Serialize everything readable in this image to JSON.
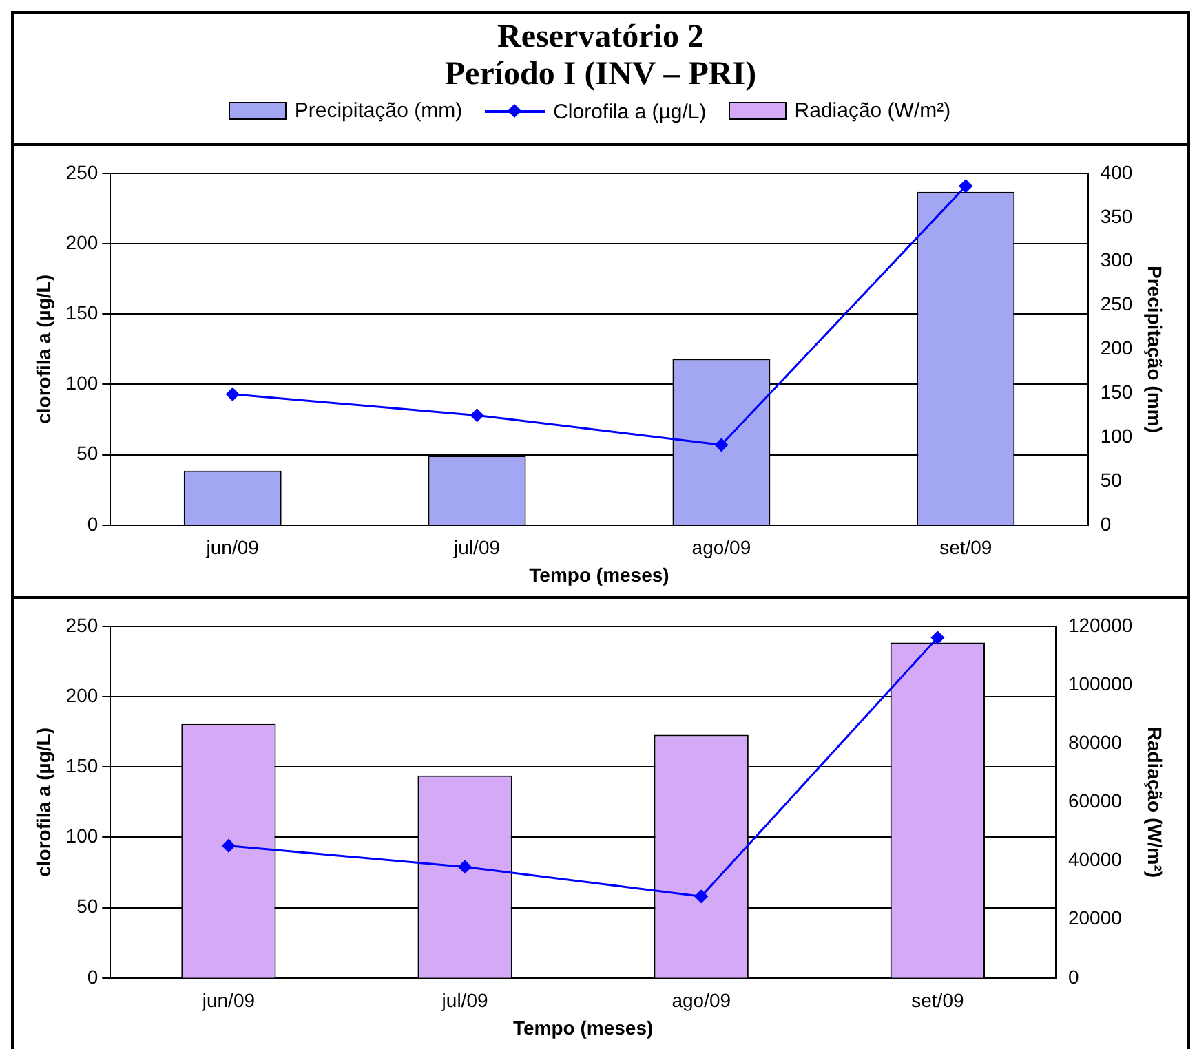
{
  "chart_data": [
    {
      "type": "bar",
      "title": "Reservatório 2\nPeríodo I (INV – PRI)",
      "xlabel": "Tempo (meses)",
      "ylabel": "clorofila a (µg/L)",
      "y2label": "Precipitação (mm)",
      "categories": [
        "jun/09",
        "jul/09",
        "ago/09",
        "set/09"
      ],
      "series": [
        {
          "name": "Precipitação (mm)",
          "axis": "y2",
          "color": "#a3a6f2",
          "values": [
            62,
            79,
            189,
            379
          ]
        },
        {
          "name": "Clorofila a (µg/L)",
          "type": "line",
          "axis": "y",
          "color": "#0000ff",
          "values": [
            93,
            78,
            57,
            241
          ]
        }
      ],
      "ylim": [
        0,
        250
      ],
      "yticks": [
        0,
        50,
        100,
        150,
        200,
        250
      ],
      "y2lim": [
        0,
        400
      ],
      "y2ticks": [
        0,
        50,
        100,
        150,
        200,
        250,
        300,
        350,
        400
      ],
      "grid": "y",
      "legend": "top",
      "marker": "diamond"
    },
    {
      "type": "bar",
      "xlabel": "Tempo (meses)",
      "ylabel": "clorofila a (µg/L)",
      "y2label": "Radiação (W/m²)",
      "categories": [
        "jun/09",
        "jul/09",
        "ago/09",
        "set/09"
      ],
      "series": [
        {
          "name": "Radiação (W/m²)",
          "axis": "y2",
          "color": "#d4aaf7",
          "values": [
            86700,
            69100,
            83000,
            114500
          ]
        },
        {
          "type": "line",
          "axis": "y",
          "color": "#0000ff",
          "values": [
            94,
            79,
            58,
            242
          ]
        }
      ],
      "ylim": [
        0,
        250
      ],
      "yticks": [
        0,
        50,
        100,
        150,
        200,
        250
      ],
      "y2lim": [
        0,
        120000
      ],
      "y2ticks": [
        0,
        20000,
        40000,
        60000,
        80000,
        100000,
        120000
      ],
      "grid": "y",
      "legend": "top",
      "marker": "diamond"
    }
  ]
}
